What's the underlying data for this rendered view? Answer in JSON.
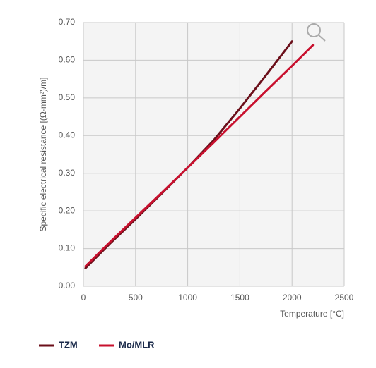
{
  "chart_data": {
    "type": "line",
    "y_label": "Specific electrical resistance [(Ω·mm²)/m]",
    "x_label": "Temperature [°C]",
    "xlim": [
      0,
      2500
    ],
    "xticks": [
      0,
      500,
      1000,
      1500,
      2000,
      2500
    ],
    "ylim": [
      0,
      0.7
    ],
    "yticks": [
      {
        "value": 0,
        "label": "0.00"
      },
      {
        "value": 0.1,
        "label": "0.10"
      },
      {
        "value": 0.2,
        "label": "0.20"
      },
      {
        "value": 0.3,
        "label": "0.30"
      },
      {
        "value": 0.4,
        "label": "0.40"
      },
      {
        "value": 0.5,
        "label": "0.50"
      },
      {
        "value": 0.6,
        "label": "0.60"
      },
      {
        "value": 0.7,
        "label": "0.70"
      }
    ],
    "grid": true,
    "series": [
      {
        "name": "TZM",
        "color": "#6b0f1a",
        "x": [
          20,
          250,
          500,
          750,
          1000,
          1250,
          1500,
          1750,
          2000
        ],
        "values": [
          0.048,
          0.112,
          0.178,
          0.246,
          0.315,
          0.388,
          0.472,
          0.56,
          0.65
        ]
      },
      {
        "name": "Mo/MLR",
        "color": "#c8102e",
        "x": [
          20,
          250,
          500,
          750,
          1000,
          1250,
          1500,
          1750,
          2000,
          2200
        ],
        "values": [
          0.053,
          0.116,
          0.182,
          0.248,
          0.315,
          0.382,
          0.45,
          0.518,
          0.585,
          0.64
        ]
      }
    ]
  }
}
